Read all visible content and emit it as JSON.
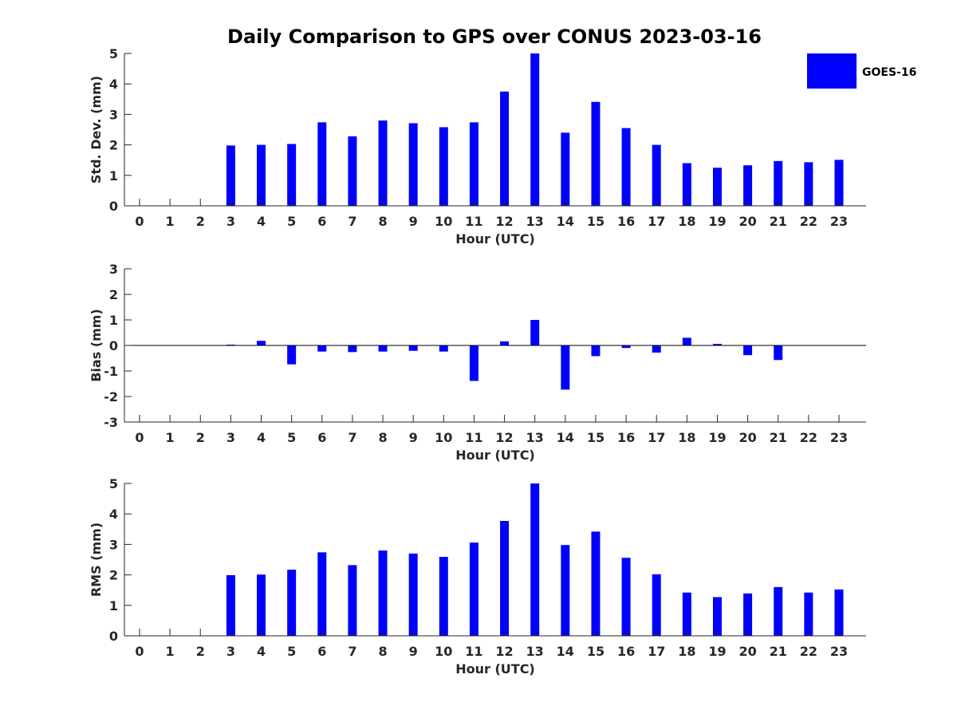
{
  "title": "Daily Comparison to GPS over CONUS 2023-03-16",
  "colors": {
    "bar": "#0000ff",
    "axis": "#262626",
    "zero_line": "#000000"
  },
  "legend": {
    "label": "GOES-16",
    "placement": "top-right"
  },
  "chart_data": [
    {
      "type": "bar",
      "ylabel": "Std. Dev. (mm)",
      "xlabel": "Hour (UTC)",
      "ylim": [
        0,
        5
      ],
      "yticks": [
        0,
        1,
        2,
        3,
        4,
        5
      ],
      "categories": [
        "0",
        "1",
        "2",
        "3",
        "4",
        "5",
        "6",
        "7",
        "8",
        "9",
        "10",
        "11",
        "12",
        "13",
        "14",
        "15",
        "16",
        "17",
        "18",
        "19",
        "20",
        "21",
        "22",
        "23"
      ],
      "series": [
        {
          "name": "GOES-16",
          "values": [
            null,
            null,
            null,
            1.98,
            2.0,
            2.03,
            2.74,
            2.28,
            2.8,
            2.71,
            2.58,
            2.74,
            3.75,
            5.0,
            2.4,
            3.41,
            2.55,
            2.0,
            1.4,
            1.25,
            1.33,
            1.47,
            1.43,
            1.51
          ]
        }
      ]
    },
    {
      "type": "bar",
      "ylabel": "Bias (mm)",
      "xlabel": "Hour (UTC)",
      "ylim": [
        -3,
        3
      ],
      "yticks": [
        -3,
        -2,
        -1,
        0,
        1,
        2,
        3
      ],
      "categories": [
        "0",
        "1",
        "2",
        "3",
        "4",
        "5",
        "6",
        "7",
        "8",
        "9",
        "10",
        "11",
        "12",
        "13",
        "14",
        "15",
        "16",
        "17",
        "18",
        "19",
        "20",
        "21",
        "22",
        "23"
      ],
      "series": [
        {
          "name": "GOES-16",
          "values": [
            null,
            null,
            null,
            0.03,
            0.18,
            -0.74,
            -0.24,
            -0.26,
            -0.24,
            -0.21,
            -0.24,
            -1.39,
            0.16,
            1.0,
            -1.73,
            -0.42,
            -0.1,
            -0.28,
            0.3,
            0.06,
            -0.38,
            -0.57,
            0.0,
            0.0
          ]
        }
      ]
    },
    {
      "type": "bar",
      "ylabel": "RMS (mm)",
      "xlabel": "Hour (UTC)",
      "ylim": [
        0,
        5
      ],
      "yticks": [
        0,
        1,
        2,
        3,
        4,
        5
      ],
      "categories": [
        "0",
        "1",
        "2",
        "3",
        "4",
        "5",
        "6",
        "7",
        "8",
        "9",
        "10",
        "11",
        "12",
        "13",
        "14",
        "15",
        "16",
        "17",
        "18",
        "19",
        "20",
        "21",
        "22",
        "23"
      ],
      "series": [
        {
          "name": "GOES-16",
          "values": [
            null,
            null,
            null,
            1.99,
            2.01,
            2.17,
            2.74,
            2.32,
            2.8,
            2.7,
            2.59,
            3.06,
            3.77,
            5.0,
            2.98,
            3.42,
            2.56,
            2.02,
            1.42,
            1.27,
            1.39,
            1.6,
            1.42,
            1.52
          ]
        }
      ]
    }
  ]
}
